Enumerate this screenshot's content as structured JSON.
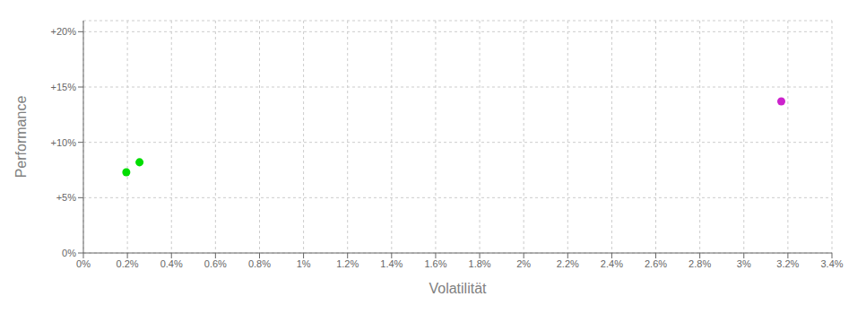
{
  "chart_data": {
    "type": "scatter",
    "xlabel": "Volatilität",
    "ylabel": "Performance",
    "x": [
      0.00195,
      0.00255,
      0.0317
    ],
    "values": [
      0.073,
      0.082,
      0.137
    ],
    "colors": [
      "#00dd00",
      "#00dd00",
      "#cc22cc"
    ],
    "xlim": [
      0.0,
      0.034
    ],
    "ylim": [
      0.0,
      0.21
    ],
    "xticks": [
      {
        "value": 0.0,
        "label": "0%"
      },
      {
        "value": 0.002,
        "label": "0.2%"
      },
      {
        "value": 0.004,
        "label": "0.4%"
      },
      {
        "value": 0.006,
        "label": "0.6%"
      },
      {
        "value": 0.008,
        "label": "0.8%"
      },
      {
        "value": 0.01,
        "label": "1%"
      },
      {
        "value": 0.012,
        "label": "1.2%"
      },
      {
        "value": 0.014,
        "label": "1.4%"
      },
      {
        "value": 0.016,
        "label": "1.6%"
      },
      {
        "value": 0.018,
        "label": "1.8%"
      },
      {
        "value": 0.02,
        "label": "2%"
      },
      {
        "value": 0.022,
        "label": "2.2%"
      },
      {
        "value": 0.024,
        "label": "2.4%"
      },
      {
        "value": 0.026,
        "label": "2.6%"
      },
      {
        "value": 0.028,
        "label": "2.8%"
      },
      {
        "value": 0.03,
        "label": "3%"
      },
      {
        "value": 0.032,
        "label": "3.2%"
      },
      {
        "value": 0.034,
        "label": "3.4%"
      }
    ],
    "yticks": [
      {
        "value": 0.0,
        "label": "0%"
      },
      {
        "value": 0.05,
        "label": "+5%"
      },
      {
        "value": 0.1,
        "label": "+10%"
      },
      {
        "value": 0.15,
        "label": "+15%"
      },
      {
        "value": 0.2,
        "label": "+20%"
      }
    ],
    "grid": true
  }
}
